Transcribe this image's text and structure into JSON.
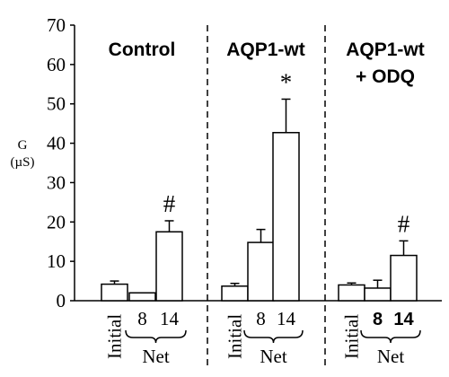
{
  "chart_data": {
    "type": "bar",
    "ylabel_line1": "G",
    "ylabel_line2": "(µS)",
    "ylim": [
      0,
      70
    ],
    "yticks": [
      "0",
      "10",
      "20",
      "30",
      "40",
      "50",
      "60",
      "70"
    ],
    "group_label": "Net",
    "panels": [
      {
        "title_lines": [
          "Control"
        ],
        "categories": [
          "Initial",
          "8",
          "14"
        ],
        "values": [
          4.2,
          2.0,
          17.5
        ],
        "errors": [
          0.8,
          0.0,
          2.8
        ],
        "annotations": [
          "",
          "",
          "#"
        ]
      },
      {
        "title_lines": [
          "AQP1-wt"
        ],
        "categories": [
          "Initial",
          "8",
          "14"
        ],
        "values": [
          3.7,
          14.8,
          42.7
        ],
        "errors": [
          0.7,
          3.3,
          8.5
        ],
        "annotations": [
          "",
          "",
          "*"
        ]
      },
      {
        "title_lines": [
          "AQP1-wt",
          "+ ODQ"
        ],
        "categories": [
          "Initial",
          "8",
          "14"
        ],
        "values": [
          4.0,
          3.2,
          11.5
        ],
        "errors": [
          0.5,
          2.0,
          3.7
        ],
        "annotations": [
          "",
          "",
          "#"
        ]
      }
    ]
  }
}
